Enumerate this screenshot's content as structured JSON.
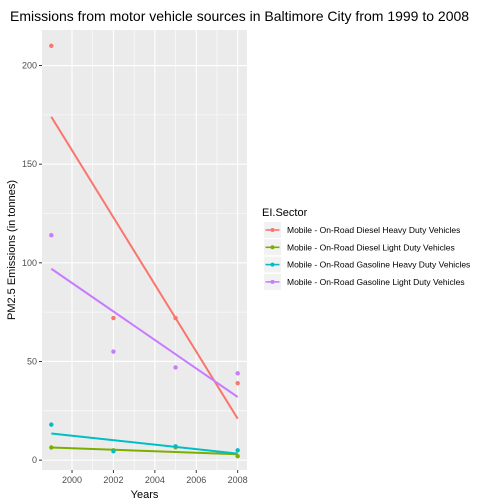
{
  "chart_data": {
    "type": "scatter",
    "title": "Emissions from motor vehicle sources in Baltimore City from 1999 to 2008",
    "xlabel": "Years",
    "ylabel": "PM2.5 Emissions (in tonnes)",
    "xlim": [
      1998.55,
      2008.45
    ],
    "ylim": [
      -5,
      218
    ],
    "x_ticks": [
      2000,
      2002,
      2004,
      2006,
      2008
    ],
    "y_ticks": [
      0,
      50,
      100,
      150,
      200
    ],
    "grid": true,
    "legend": {
      "title": "EI.Sector",
      "placement": "right"
    },
    "series": [
      {
        "name": "Mobile - On-Road Diesel Heavy Duty Vehicles",
        "color": "#F8766D",
        "points": [
          [
            1999,
            210
          ],
          [
            2002,
            72
          ],
          [
            2005,
            72
          ],
          [
            2008,
            39
          ]
        ],
        "fit": [
          [
            1999,
            174
          ],
          [
            2008,
            21
          ]
        ]
      },
      {
        "name": "Mobile - On-Road Diesel Light Duty Vehicles",
        "color": "#7CAE00",
        "points": [
          [
            1999,
            6.4
          ],
          [
            2002,
            5.0
          ],
          [
            2005,
            6.5
          ],
          [
            2008,
            2.0
          ]
        ],
        "fit": [
          [
            1999,
            6.4
          ],
          [
            2008,
            3.0
          ]
        ]
      },
      {
        "name": "Mobile - On-Road Gasoline Heavy Duty Vehicles",
        "color": "#00BFC4",
        "points": [
          [
            1999,
            18
          ],
          [
            2002,
            4.5
          ],
          [
            2005,
            7.0
          ],
          [
            2008,
            5.0
          ]
        ],
        "fit": [
          [
            1999,
            13.5
          ],
          [
            2008,
            3.3
          ]
        ]
      },
      {
        "name": "Mobile - On-Road Gasoline Light Duty Vehicles",
        "color": "#C77CFF",
        "points": [
          [
            1999,
            114
          ],
          [
            2002,
            55
          ],
          [
            2005,
            47
          ],
          [
            2008,
            44
          ]
        ],
        "fit": [
          [
            1999,
            97
          ],
          [
            2008,
            32
          ]
        ]
      }
    ]
  }
}
